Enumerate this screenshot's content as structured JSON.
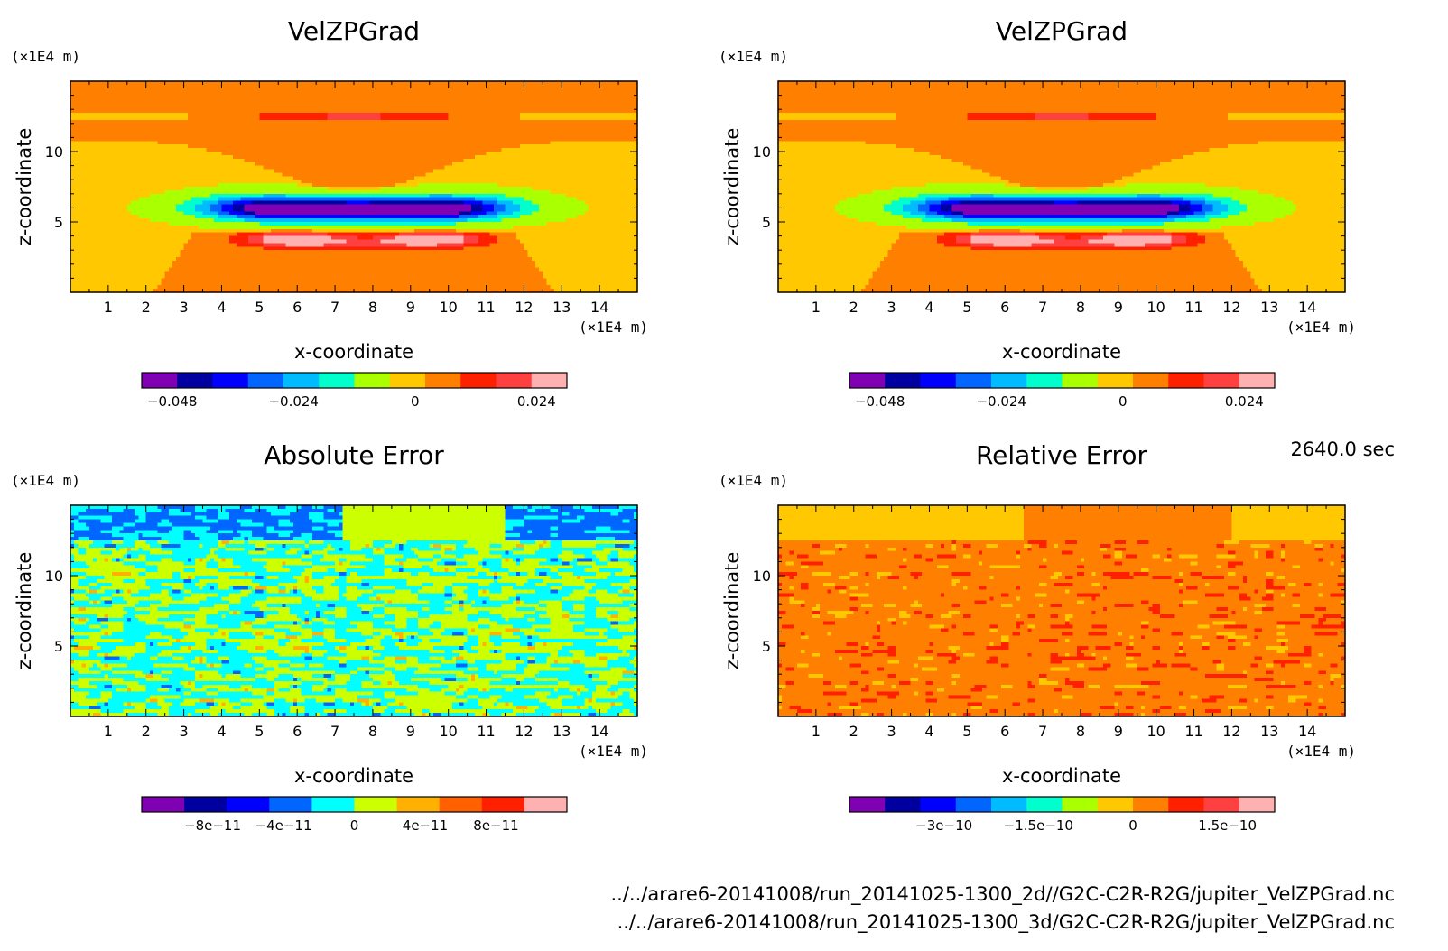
{
  "figure": {
    "time_label": "2640.0 sec",
    "files": [
      "../../arare6-20141008/run_20141025-1300_2d//G2C-C2R-R2G/jupiter_VelZPGrad.nc",
      "../../arare6-20141008/run_20141025-1300_3d/G2C-C2R-R2G/jupiter_VelZPGrad.nc"
    ]
  },
  "chart_data": [
    {
      "type": "heatmap",
      "title": "VelZPGrad",
      "xlabel": "x-coordinate",
      "ylabel": "z-coordinate",
      "x_unit": "(×1E4 m)",
      "y_unit": "(×1E4 m)",
      "xlim": [
        0,
        15
      ],
      "ylim": [
        0,
        15
      ],
      "x_ticks": [
        1,
        2,
        3,
        4,
        5,
        6,
        7,
        8,
        9,
        10,
        11,
        12,
        13,
        14
      ],
      "y_ticks": [
        5,
        10
      ],
      "field": "velzpgrad",
      "colorbar": {
        "range": [
          -0.054,
          0.03
        ],
        "colors": [
          "#8000b4",
          "#0000a0",
          "#0000ff",
          "#0066ff",
          "#00bbff",
          "#00ffcc",
          "#aaff00",
          "#ffc800",
          "#ff8000",
          "#ff2000",
          "#ff4040",
          "#ffb0b0"
        ],
        "ticks": [
          {
            "value": -0.048,
            "label": "−0.048"
          },
          {
            "value": -0.024,
            "label": "−0.024"
          },
          {
            "value": 0,
            "label": "0"
          },
          {
            "value": 0.024,
            "label": "0.024"
          }
        ]
      }
    },
    {
      "type": "heatmap",
      "title": "VelZPGrad",
      "xlabel": "x-coordinate",
      "ylabel": "z-coordinate",
      "x_unit": "(×1E4 m)",
      "y_unit": "(×1E4 m)",
      "xlim": [
        0,
        15
      ],
      "ylim": [
        0,
        15
      ],
      "x_ticks": [
        1,
        2,
        3,
        4,
        5,
        6,
        7,
        8,
        9,
        10,
        11,
        12,
        13,
        14
      ],
      "y_ticks": [
        5,
        10
      ],
      "field": "velzpgrad",
      "colorbar": {
        "range": [
          -0.054,
          0.03
        ],
        "colors": [
          "#8000b4",
          "#0000a0",
          "#0000ff",
          "#0066ff",
          "#00bbff",
          "#00ffcc",
          "#aaff00",
          "#ffc800",
          "#ff8000",
          "#ff2000",
          "#ff4040",
          "#ffb0b0"
        ],
        "ticks": [
          {
            "value": -0.048,
            "label": "−0.048"
          },
          {
            "value": -0.024,
            "label": "−0.024"
          },
          {
            "value": 0,
            "label": "0"
          },
          {
            "value": 0.024,
            "label": "0.024"
          }
        ]
      }
    },
    {
      "type": "heatmap",
      "title": "Absolute Error",
      "xlabel": "x-coordinate",
      "ylabel": "z-coordinate",
      "x_unit": "(×1E4 m)",
      "y_unit": "(×1E4 m)",
      "xlim": [
        0,
        15
      ],
      "ylim": [
        0,
        15
      ],
      "x_ticks": [
        1,
        2,
        3,
        4,
        5,
        6,
        7,
        8,
        9,
        10,
        11,
        12,
        13,
        14
      ],
      "y_ticks": [
        5,
        10
      ],
      "field": "abs_error",
      "colorbar": {
        "range": [
          -1.2e-10,
          1.2e-10
        ],
        "colors": [
          "#8000b4",
          "#0000a0",
          "#0000ff",
          "#0066ff",
          "#00ffff",
          "#ccff00",
          "#ffb000",
          "#ff6000",
          "#ff2000",
          "#ffb0b0"
        ],
        "ticks": [
          {
            "value": -8e-11,
            "label": "−8e−11"
          },
          {
            "value": -4e-11,
            "label": "−4e−11"
          },
          {
            "value": 0,
            "label": "0"
          },
          {
            "value": 4e-11,
            "label": "4e−11"
          },
          {
            "value": 8e-11,
            "label": "8e−11"
          }
        ]
      }
    },
    {
      "type": "heatmap",
      "title": "Relative Error",
      "xlabel": "x-coordinate",
      "ylabel": "z-coordinate",
      "x_unit": "(×1E4 m)",
      "y_unit": "(×1E4 m)",
      "xlim": [
        0,
        15
      ],
      "ylim": [
        0,
        15
      ],
      "x_ticks": [
        1,
        2,
        3,
        4,
        5,
        6,
        7,
        8,
        9,
        10,
        11,
        12,
        13,
        14
      ],
      "y_ticks": [
        5,
        10
      ],
      "field": "rel_error",
      "colorbar": {
        "range": [
          -4.5e-10,
          2.25e-10
        ],
        "colors": [
          "#8000b4",
          "#0000a0",
          "#0000ff",
          "#0066ff",
          "#00bbff",
          "#00ffcc",
          "#aaff00",
          "#ffc800",
          "#ff8000",
          "#ff2000",
          "#ff4040",
          "#ffb0b0"
        ],
        "ticks": [
          {
            "value": -3e-10,
            "label": "−3e−10"
          },
          {
            "value": -1.5e-10,
            "label": "−1.5e−10"
          },
          {
            "value": 0,
            "label": "0"
          },
          {
            "value": 1.5e-10,
            "label": "1.5e−10"
          }
        ]
      }
    }
  ]
}
